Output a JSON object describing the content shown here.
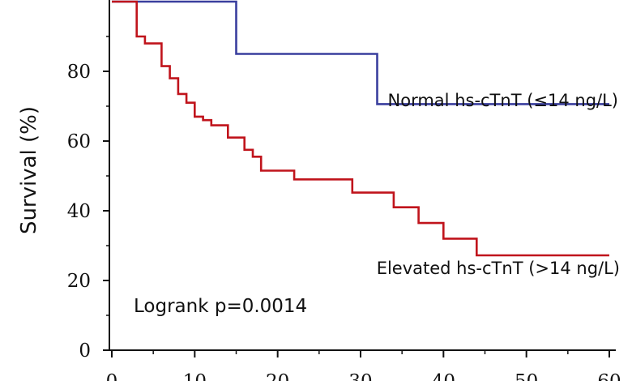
{
  "chart_data": {
    "type": "line",
    "step": true,
    "ylabel": "Survival (%)",
    "xlabel": "",
    "xlim": [
      0,
      60
    ],
    "ylim": [
      0,
      100
    ],
    "x_ticks": [
      0,
      10,
      20,
      30,
      40,
      50,
      60
    ],
    "x_tick_labels": [
      "0",
      "10",
      "20",
      "30",
      "40",
      "50",
      "60"
    ],
    "y_ticks": [
      0,
      20,
      40,
      60,
      80
    ],
    "y_tick_labels": [
      "0",
      "20",
      "40",
      "60",
      "80"
    ],
    "grid": false,
    "series": [
      {
        "name": "Normal hs-cTnT (≤14 ng/L)",
        "color": "#3a3f9e",
        "x": [
          0,
          15,
          15,
          32,
          32,
          60
        ],
        "y": [
          100,
          100,
          85,
          85,
          70.6,
          70.6
        ]
      },
      {
        "name": "Elevated hs-cTnT (>14 ng/L)",
        "color": "#c0141c",
        "x": [
          0,
          3,
          3,
          4,
          4,
          6,
          6,
          7,
          7,
          8,
          8,
          9,
          9,
          10,
          10,
          11,
          11,
          12,
          12,
          14,
          14,
          16,
          16,
          17,
          17,
          18,
          18,
          22,
          22,
          29,
          29,
          34,
          34,
          37,
          37,
          40,
          40,
          44,
          44,
          60
        ],
        "y": [
          100,
          100,
          90,
          90,
          88,
          88,
          81.5,
          81.5,
          78,
          78,
          73.5,
          73.5,
          71,
          71,
          67,
          67,
          66,
          66,
          64.5,
          64.5,
          61,
          61,
          57.5,
          57.5,
          55.5,
          55.5,
          51.5,
          51.5,
          49,
          49,
          45.2,
          45.2,
          41,
          41,
          36.5,
          36.5,
          32,
          32,
          27.2,
          27.2
        ]
      }
    ],
    "annotations": [
      {
        "text": "Normal hs-cTnT (≤14 ng/L)"
      },
      {
        "text": "Elevated hs-cTnT (>14 ng/L)"
      },
      {
        "text": "Logrank p=0.0014"
      }
    ]
  }
}
